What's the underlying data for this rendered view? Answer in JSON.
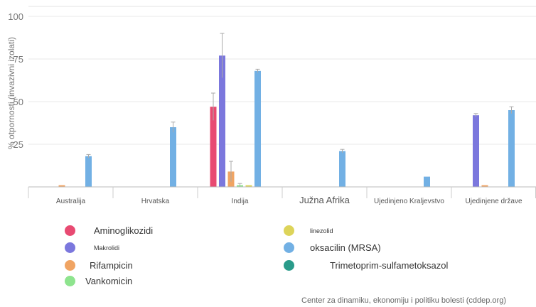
{
  "chart_data": {
    "type": "bar",
    "ylabel": "% otpornosti (invazivni izolati)",
    "ylim": [
      0,
      100
    ],
    "yticks": [
      25,
      50,
      75,
      100
    ],
    "grid": true,
    "legend_position": "bottom",
    "categories": [
      "Australija",
      "Hrvatska",
      "Indija",
      "Južna Afrika",
      "Ujedinjeno Kraljevstvo",
      "Ujedinjene države"
    ],
    "series": [
      {
        "name": "Aminoglikozidi",
        "color": "#e84a72",
        "values": [
          null,
          null,
          47,
          null,
          null,
          null
        ],
        "err": [
          null,
          null,
          8,
          null,
          null,
          null
        ]
      },
      {
        "name": "Makrolidi",
        "color": "#7b77dd",
        "values": [
          null,
          null,
          77,
          null,
          null,
          42
        ],
        "err": [
          null,
          null,
          13,
          null,
          null,
          1
        ]
      },
      {
        "name": "Rifampicin",
        "color": "#f0a463",
        "values": [
          1,
          null,
          9,
          null,
          null,
          1
        ],
        "err": [
          null,
          null,
          6,
          null,
          null,
          null
        ]
      },
      {
        "name": "Vankomicin",
        "color": "#8ee48e",
        "values": [
          null,
          null,
          1,
          null,
          null,
          null
        ],
        "err": [
          null,
          null,
          1,
          null,
          null,
          null
        ]
      },
      {
        "name": "linezolid",
        "color": "#ddd45a",
        "values": [
          null,
          null,
          1,
          null,
          null,
          null
        ],
        "err": [
          null,
          null,
          null,
          null,
          null,
          null
        ]
      },
      {
        "name": "oksacilin (MRSA)",
        "color": "#72b0e4",
        "values": [
          18,
          35,
          68,
          21,
          6,
          45
        ],
        "err": [
          1,
          3,
          1,
          1,
          null,
          2
        ]
      },
      {
        "name": "Trimetoprim-sulfametoksazol",
        "color": "#2a9b8a",
        "values": [
          null,
          null,
          null,
          null,
          null,
          null
        ],
        "err": [
          null,
          null,
          null,
          null,
          null,
          null
        ]
      }
    ]
  },
  "legend": {
    "items": [
      {
        "label": "Aminoglikozidi",
        "color": "#e84a72"
      },
      {
        "label": "Makrolidi",
        "color": "#7b77dd"
      },
      {
        "label": "Rifampicin",
        "color": "#f0a463"
      },
      {
        "label": "Vankomicin",
        "color": "#8ee48e"
      },
      {
        "label": "linezolid",
        "color": "#ddd45a"
      },
      {
        "label": "oksacilin (MRSA)",
        "color": "#72b0e4"
      },
      {
        "label": "Trimetoprim-sulfametoksazol",
        "color": "#2a9b8a"
      }
    ]
  },
  "source": "Center za dinamiku, ekonomiju i politiku bolesti (cddep.org)"
}
